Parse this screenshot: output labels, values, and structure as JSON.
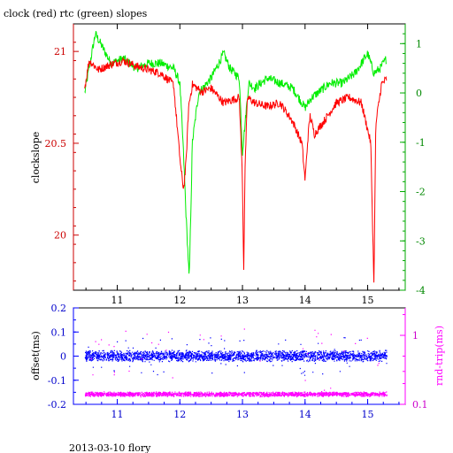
{
  "title": "clock (red) rtc (green) slopes",
  "footer": "2013-03-10 flory",
  "chart_data": [
    {
      "type": "line",
      "title": "clock (red) rtc (green) slopes",
      "xlabel": "",
      "x_ticks": [
        "11",
        "12",
        "13",
        "14",
        "15"
      ],
      "xlim": [
        10.3,
        15.6
      ],
      "ylabel": "clockslope",
      "ylim": [
        19.7,
        21.15
      ],
      "y_ticks": [
        "20",
        "20.5",
        "21"
      ],
      "y2label": "",
      "y2lim": [
        -4,
        1.4
      ],
      "y2_ticks": [
        "-4",
        "-3",
        "-2",
        "-1",
        "0",
        "1"
      ],
      "colors": {
        "clock": "#ff0000",
        "rtc": "#00ee00",
        "axis_left": "#cc0000",
        "axis_right": "#00aa00"
      },
      "series": [
        {
          "name": "clock",
          "axis": "left",
          "x": [
            10.48,
            10.55,
            10.7,
            10.9,
            11.1,
            11.3,
            11.5,
            11.7,
            11.9,
            11.98,
            12.02,
            12.06,
            12.1,
            12.14,
            12.2,
            12.35,
            12.5,
            12.7,
            12.95,
            13.0,
            13.02,
            13.04,
            13.08,
            13.2,
            13.4,
            13.6,
            13.8,
            13.95,
            14.0,
            14.05,
            14.08,
            14.15,
            14.3,
            14.5,
            14.7,
            14.9,
            15.05,
            15.1,
            15.13,
            15.17,
            15.22,
            15.3
          ],
          "y": [
            20.8,
            20.95,
            20.9,
            20.93,
            20.95,
            20.92,
            20.9,
            20.88,
            20.82,
            20.5,
            20.35,
            20.25,
            20.4,
            20.7,
            20.82,
            20.78,
            20.8,
            20.72,
            20.75,
            20.3,
            19.8,
            20.35,
            20.75,
            20.72,
            20.7,
            20.72,
            20.62,
            20.5,
            20.3,
            20.55,
            20.65,
            20.55,
            20.62,
            20.72,
            20.75,
            20.72,
            20.5,
            19.72,
            20.6,
            20.7,
            20.82,
            20.85
          ]
        },
        {
          "name": "rtc",
          "axis": "right",
          "x": [
            10.48,
            10.55,
            10.65,
            10.9,
            11.1,
            11.3,
            11.5,
            11.7,
            11.9,
            12.0,
            12.05,
            12.1,
            12.15,
            12.2,
            12.3,
            12.5,
            12.7,
            12.8,
            12.95,
            13.0,
            13.05,
            13.1,
            13.2,
            13.4,
            13.6,
            13.8,
            14.0,
            14.1,
            14.2,
            14.4,
            14.6,
            14.8,
            15.0,
            15.1,
            15.2,
            15.3
          ],
          "y": [
            0.0,
            0.5,
            1.2,
            0.6,
            0.7,
            0.5,
            0.6,
            0.6,
            0.5,
            0.2,
            -1.0,
            -2.5,
            -3.8,
            -1.0,
            0.0,
            0.3,
            0.8,
            0.5,
            0.3,
            -1.2,
            -0.5,
            0.2,
            0.1,
            0.3,
            0.2,
            0.1,
            -0.3,
            -0.1,
            0.0,
            0.2,
            0.2,
            0.4,
            0.8,
            0.4,
            0.5,
            0.7
          ]
        }
      ]
    },
    {
      "type": "scatter",
      "title": "",
      "xlabel": "",
      "x_ticks": [
        "11",
        "12",
        "13",
        "14",
        "15"
      ],
      "xlim": [
        10.3,
        15.6
      ],
      "ylabel": "offset(ms)",
      "ylim": [
        -0.2,
        0.2
      ],
      "y_ticks": [
        "0.2",
        "0.1",
        "0",
        "-0.1",
        "-0.2"
      ],
      "y2label": "rnd-trip(ms)",
      "y2_scale": "log",
      "y2lim": [
        0.1,
        2.5
      ],
      "y2_ticks": [
        "1",
        "0.1"
      ],
      "colors": {
        "offset": "#0000ff",
        "rnd_trip": "#ff00ff"
      },
      "series": [
        {
          "name": "offset",
          "axis": "left",
          "x_range": [
            10.48,
            15.3
          ],
          "center": 0.0,
          "spread": 0.025
        },
        {
          "name": "rnd-trip",
          "axis": "right",
          "x_range": [
            10.48,
            15.3
          ],
          "center": 0.14,
          "spread": 0.012
        }
      ]
    }
  ]
}
